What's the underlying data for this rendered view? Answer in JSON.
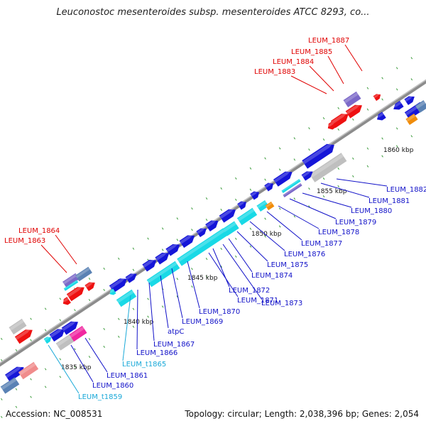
{
  "title": "Leuconostoc mesenteroides subsp. mesenteroides ATCC 8293, co...",
  "footer": {
    "accession": "Accession: NC_008531",
    "summary": "Topology: circular; Length: 2,038,396 bp; Genes: 2,054"
  },
  "colors": {
    "backbone": "#8c8c8c",
    "cds_blue": "#1515d8",
    "cds_cyan": "#19d9e6",
    "cds_red": "#ee1111",
    "cds_gray": "#bfbfbf",
    "cds_purple": "#7b68c8",
    "cds_steel": "#5a82b4",
    "cds_orange": "#f08c0a",
    "cds_pink": "#f028a0",
    "cds_salmon": "#f08c8c",
    "label_blue": "#1010c8",
    "label_red": "#e00000",
    "label_cyan": "#18a8d8",
    "tick_dot": "#1a8a1a"
  },
  "scale_labels": [
    "1835 kbp",
    "1840 kbp",
    "1845 kbp",
    "1850 kbp",
    "1855 kbp",
    "1860 kbp"
  ],
  "gene_labels": [
    {
      "text": "LEUM_1887",
      "color": "red"
    },
    {
      "text": "LEUM_1885",
      "color": "red"
    },
    {
      "text": "LEUM_1884",
      "color": "red"
    },
    {
      "text": "LEUM_1883",
      "color": "red"
    },
    {
      "text": "LEUM_1864",
      "color": "red"
    },
    {
      "text": "LEUM_1863",
      "color": "red"
    },
    {
      "text": "LEUM_1882",
      "color": "blue"
    },
    {
      "text": "LEUM_1881",
      "color": "blue"
    },
    {
      "text": "LEUM_1880",
      "color": "blue"
    },
    {
      "text": "LEUM_1879",
      "color": "blue"
    },
    {
      "text": "LEUM_1878",
      "color": "blue"
    },
    {
      "text": "LEUM_1877",
      "color": "blue"
    },
    {
      "text": "LEUM_1876",
      "color": "blue"
    },
    {
      "text": "LEUM_1875",
      "color": "blue"
    },
    {
      "text": "LEUM_1874",
      "color": "blue"
    },
    {
      "text": "LEUM_1873",
      "color": "blue"
    },
    {
      "text": "LEUM_1872",
      "color": "blue"
    },
    {
      "text": "LEUM_1871",
      "color": "blue"
    },
    {
      "text": "LEUM_1870",
      "color": "blue"
    },
    {
      "text": "LEUM_1869",
      "color": "blue"
    },
    {
      "text": "atpC",
      "color": "blue"
    },
    {
      "text": "LEUM_1867",
      "color": "blue"
    },
    {
      "text": "LEUM_1866",
      "color": "blue"
    },
    {
      "text": "LEUM_t1865",
      "color": "cyan"
    },
    {
      "text": "LEUM_1861",
      "color": "blue"
    },
    {
      "text": "LEUM_1860",
      "color": "blue"
    },
    {
      "text": "LEUM_t1859",
      "color": "cyan"
    }
  ]
}
